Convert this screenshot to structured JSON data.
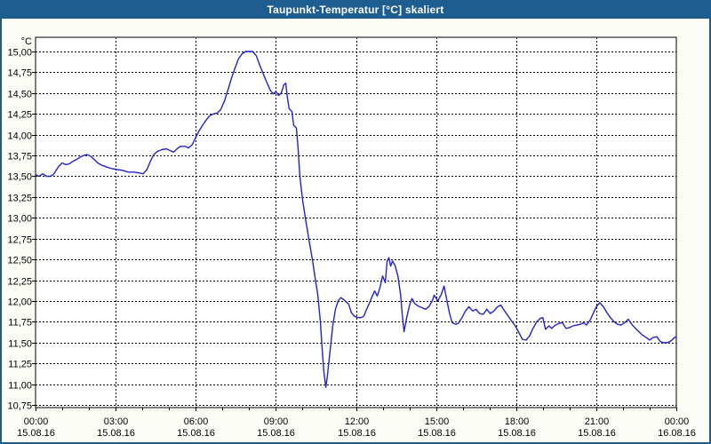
{
  "window": {
    "title": "Taupunkt-Temperatur [°C] skaliert"
  },
  "colors": {
    "titlebar_bg": "#1d5d8f",
    "title_text": "#ffffff",
    "window_border": "#1d5d8f",
    "window_bg": "#fdfdf8",
    "plot_bg": "#ffffff",
    "plot_border": "#000000",
    "grid": "#000000",
    "axis_text": "#000000",
    "series_line": "#2222cc"
  },
  "chart_data": {
    "type": "line",
    "title": "Taupunkt-Temperatur [°C] skaliert",
    "ylabel": "°C",
    "xlabel": "",
    "ylim": [
      10.75,
      15.0
    ],
    "xlim_hours": [
      0,
      24
    ],
    "grid": "dashed",
    "legend": "none",
    "y_axis": {
      "unit": "°C",
      "min": 10.75,
      "max": 15.0,
      "step": 0.25,
      "tick_labels": [
        "15,00",
        "14,75",
        "14,50",
        "14,25",
        "14,00",
        "13,75",
        "13,50",
        "13,25",
        "13,00",
        "12,75",
        "12,50",
        "12,25",
        "12,00",
        "11,75",
        "11,50",
        "11,25",
        "11,00",
        "10,75"
      ]
    },
    "x_axis": {
      "major_ticks": [
        {
          "hour": 0,
          "time": "00:00",
          "date": "15.08.16"
        },
        {
          "hour": 3,
          "time": "03:00",
          "date": "15.08.16"
        },
        {
          "hour": 6,
          "time": "06:00",
          "date": "15.08.16"
        },
        {
          "hour": 9,
          "time": "09:00",
          "date": "15.08.16"
        },
        {
          "hour": 12,
          "time": "12:00",
          "date": "15.08.16"
        },
        {
          "hour": 15,
          "time": "15:00",
          "date": "15.08.16"
        },
        {
          "hour": 18,
          "time": "18:00",
          "date": "15.08.16"
        },
        {
          "hour": 21,
          "time": "21:00",
          "date": "15.08.16"
        },
        {
          "hour": 24,
          "time": "00:00",
          "date": "16.08.16"
        }
      ],
      "minor_tick_every_hours": 1
    },
    "series": [
      {
        "name": "Taupunkt-Temperatur",
        "color": "#2222cc",
        "points": [
          [
            0,
            13.52
          ],
          [
            0.13,
            13.5
          ],
          [
            0.27,
            13.53
          ],
          [
            0.4,
            13.5
          ],
          [
            0.55,
            13.5
          ],
          [
            0.67,
            13.52
          ],
          [
            0.77,
            13.57
          ],
          [
            0.87,
            13.62
          ],
          [
            1,
            13.66
          ],
          [
            1.13,
            13.64
          ],
          [
            1.27,
            13.65
          ],
          [
            1.4,
            13.68
          ],
          [
            1.53,
            13.7
          ],
          [
            1.67,
            13.73
          ],
          [
            1.8,
            13.75
          ],
          [
            1.93,
            13.76
          ],
          [
            2.07,
            13.74
          ],
          [
            2.2,
            13.7
          ],
          [
            2.33,
            13.66
          ],
          [
            2.5,
            13.63
          ],
          [
            2.67,
            13.61
          ],
          [
            2.87,
            13.59
          ],
          [
            3.07,
            13.58
          ],
          [
            3.27,
            13.57
          ],
          [
            3.47,
            13.55
          ],
          [
            3.67,
            13.55
          ],
          [
            3.87,
            13.54
          ],
          [
            4.03,
            13.53
          ],
          [
            4.17,
            13.58
          ],
          [
            4.3,
            13.68
          ],
          [
            4.43,
            13.76
          ],
          [
            4.57,
            13.8
          ],
          [
            4.73,
            13.82
          ],
          [
            4.9,
            13.83
          ],
          [
            5.03,
            13.81
          ],
          [
            5.17,
            13.79
          ],
          [
            5.3,
            13.83
          ],
          [
            5.43,
            13.86
          ],
          [
            5.6,
            13.86
          ],
          [
            5.73,
            13.84
          ],
          [
            5.87,
            13.88
          ],
          [
            6,
            13.97
          ],
          [
            6.13,
            14.05
          ],
          [
            6.27,
            14.12
          ],
          [
            6.4,
            14.18
          ],
          [
            6.53,
            14.23
          ],
          [
            6.67,
            14.25
          ],
          [
            6.8,
            14.26
          ],
          [
            6.93,
            14.3
          ],
          [
            7.07,
            14.4
          ],
          [
            7.2,
            14.53
          ],
          [
            7.33,
            14.67
          ],
          [
            7.47,
            14.8
          ],
          [
            7.6,
            14.91
          ],
          [
            7.73,
            14.97
          ],
          [
            7.87,
            15
          ],
          [
            8.13,
            15
          ],
          [
            8.27,
            14.95
          ],
          [
            8.4,
            14.83
          ],
          [
            8.53,
            14.73
          ],
          [
            8.67,
            14.62
          ],
          [
            8.8,
            14.53
          ],
          [
            8.9,
            14.49
          ],
          [
            9,
            14.52
          ],
          [
            9.1,
            14.47
          ],
          [
            9.2,
            14.5
          ],
          [
            9.3,
            14.6
          ],
          [
            9.37,
            14.62
          ],
          [
            9.43,
            14.45
          ],
          [
            9.5,
            14.31
          ],
          [
            9.6,
            14.28
          ],
          [
            9.67,
            14.11
          ],
          [
            9.77,
            14.08
          ],
          [
            9.83,
            13.85
          ],
          [
            9.9,
            13.5
          ],
          [
            10,
            13.22
          ],
          [
            10.13,
            12.95
          ],
          [
            10.27,
            12.68
          ],
          [
            10.37,
            12.5
          ],
          [
            10.47,
            12.28
          ],
          [
            10.57,
            12.08
          ],
          [
            10.67,
            11.75
          ],
          [
            10.73,
            11.45
          ],
          [
            10.8,
            11.15
          ],
          [
            10.87,
            10.96
          ],
          [
            10.93,
            11.1
          ],
          [
            11.03,
            11.4
          ],
          [
            11.13,
            11.7
          ],
          [
            11.23,
            11.9
          ],
          [
            11.33,
            12
          ],
          [
            11.43,
            12.04
          ],
          [
            11.53,
            12.02
          ],
          [
            11.63,
            11.99
          ],
          [
            11.73,
            11.96
          ],
          [
            11.83,
            11.86
          ],
          [
            11.93,
            11.82
          ],
          [
            12.07,
            11.8
          ],
          [
            12.2,
            11.8
          ],
          [
            12.3,
            11.82
          ],
          [
            12.4,
            11.9
          ],
          [
            12.5,
            11.97
          ],
          [
            12.6,
            12.05
          ],
          [
            12.7,
            12.12
          ],
          [
            12.8,
            12.06
          ],
          [
            12.9,
            12.16
          ],
          [
            13,
            12.3
          ],
          [
            13.1,
            12.22
          ],
          [
            13.17,
            12.48
          ],
          [
            13.23,
            12.52
          ],
          [
            13.3,
            12.42
          ],
          [
            13.37,
            12.48
          ],
          [
            13.47,
            12.42
          ],
          [
            13.57,
            12.3
          ],
          [
            13.67,
            12.08
          ],
          [
            13.73,
            11.85
          ],
          [
            13.8,
            11.63
          ],
          [
            13.9,
            11.8
          ],
          [
            14,
            11.94
          ],
          [
            14.1,
            12.03
          ],
          [
            14.2,
            11.97
          ],
          [
            14.33,
            11.94
          ],
          [
            14.47,
            11.92
          ],
          [
            14.6,
            11.9
          ],
          [
            14.73,
            11.93
          ],
          [
            14.87,
            12.01
          ],
          [
            14.93,
            12.07
          ],
          [
            15.07,
            12
          ],
          [
            15.2,
            12.08
          ],
          [
            15.3,
            12.18
          ],
          [
            15.4,
            12.02
          ],
          [
            15.5,
            11.86
          ],
          [
            15.6,
            11.74
          ],
          [
            15.73,
            11.72
          ],
          [
            15.83,
            11.73
          ],
          [
            15.97,
            11.8
          ],
          [
            16.1,
            11.88
          ],
          [
            16.23,
            11.93
          ],
          [
            16.37,
            11.88
          ],
          [
            16.5,
            11.9
          ],
          [
            16.63,
            11.85
          ],
          [
            16.77,
            11.84
          ],
          [
            16.9,
            11.9
          ],
          [
            17.03,
            11.85
          ],
          [
            17.17,
            11.88
          ],
          [
            17.3,
            11.93
          ],
          [
            17.43,
            11.95
          ],
          [
            17.57,
            11.88
          ],
          [
            17.7,
            11.82
          ],
          [
            17.83,
            11.76
          ],
          [
            17.97,
            11.7
          ],
          [
            18.1,
            11.62
          ],
          [
            18.23,
            11.54
          ],
          [
            18.37,
            11.53
          ],
          [
            18.5,
            11.58
          ],
          [
            18.63,
            11.67
          ],
          [
            18.77,
            11.75
          ],
          [
            18.9,
            11.79
          ],
          [
            19,
            11.8
          ],
          [
            19.1,
            11.66
          ],
          [
            19.23,
            11.7
          ],
          [
            19.33,
            11.67
          ],
          [
            19.47,
            11.71
          ],
          [
            19.6,
            11.73
          ],
          [
            19.73,
            11.74
          ],
          [
            19.87,
            11.67
          ],
          [
            20,
            11.68
          ],
          [
            20.13,
            11.7
          ],
          [
            20.27,
            11.71
          ],
          [
            20.4,
            11.72
          ],
          [
            20.53,
            11.74
          ],
          [
            20.63,
            11.71
          ],
          [
            20.77,
            11.77
          ],
          [
            20.9,
            11.86
          ],
          [
            21,
            11.93
          ],
          [
            21.13,
            11.98
          ],
          [
            21.27,
            11.93
          ],
          [
            21.4,
            11.86
          ],
          [
            21.53,
            11.8
          ],
          [
            21.67,
            11.75
          ],
          [
            21.8,
            11.72
          ],
          [
            21.93,
            11.71
          ],
          [
            22.07,
            11.74
          ],
          [
            22.2,
            11.78
          ],
          [
            22.33,
            11.72
          ],
          [
            22.47,
            11.67
          ],
          [
            22.6,
            11.63
          ],
          [
            22.73,
            11.59
          ],
          [
            22.87,
            11.56
          ],
          [
            23,
            11.53
          ],
          [
            23.13,
            11.56
          ],
          [
            23.27,
            11.57
          ],
          [
            23.4,
            11.51
          ],
          [
            23.53,
            11.5
          ],
          [
            23.67,
            11.5
          ],
          [
            23.8,
            11.52
          ],
          [
            23.93,
            11.56
          ],
          [
            24,
            11.57
          ]
        ]
      }
    ]
  }
}
